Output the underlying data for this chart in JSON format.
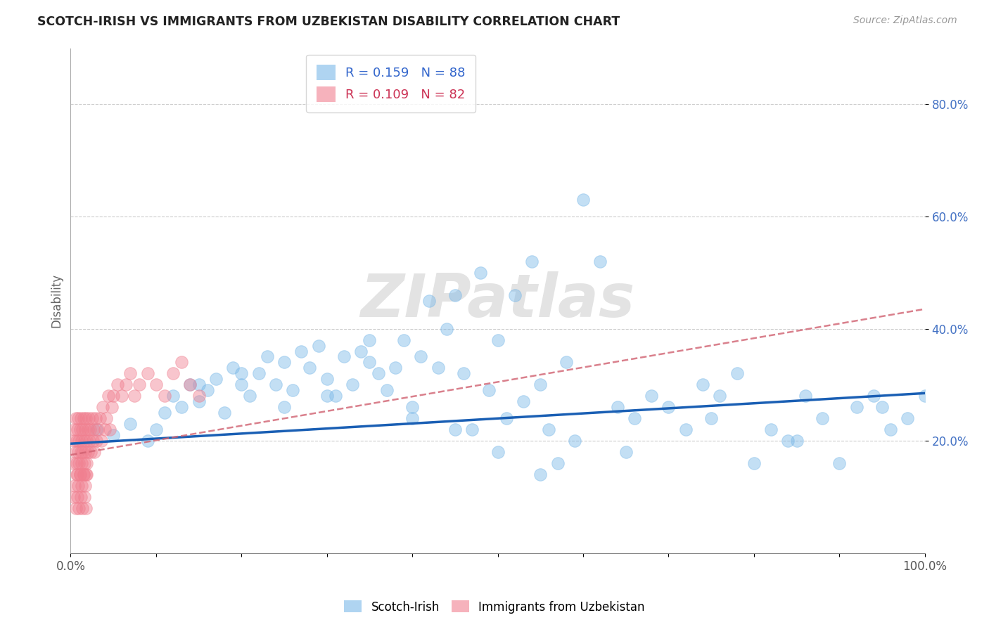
{
  "title": "SCOTCH-IRISH VS IMMIGRANTS FROM UZBEKISTAN DISABILITY CORRELATION CHART",
  "source": "Source: ZipAtlas.com",
  "ylabel": "Disability",
  "r_blue": 0.159,
  "n_blue": 88,
  "r_pink": 0.109,
  "n_pink": 82,
  "blue_color": "#7ab8e8",
  "pink_color": "#f08090",
  "blue_line_color": "#1a5fb4",
  "pink_line_color": "#d06070",
  "watermark": "ZIPatlas",
  "xlim": [
    0.0,
    1.0
  ],
  "ylim": [
    0.0,
    0.9
  ],
  "ytick_vals": [
    0.2,
    0.4,
    0.6,
    0.8
  ],
  "blue_line_x0": 0.0,
  "blue_line_y0": 0.195,
  "blue_line_x1": 1.0,
  "blue_line_y1": 0.285,
  "pink_line_x0": 0.0,
  "pink_line_y0": 0.175,
  "pink_line_x1": 1.0,
  "pink_line_y1": 0.435,
  "blue_x": [
    0.03,
    0.05,
    0.07,
    0.09,
    0.1,
    0.11,
    0.12,
    0.13,
    0.14,
    0.15,
    0.16,
    0.17,
    0.18,
    0.19,
    0.2,
    0.21,
    0.22,
    0.23,
    0.24,
    0.25,
    0.26,
    0.27,
    0.28,
    0.29,
    0.3,
    0.31,
    0.32,
    0.33,
    0.34,
    0.35,
    0.36,
    0.37,
    0.38,
    0.39,
    0.4,
    0.41,
    0.42,
    0.43,
    0.44,
    0.45,
    0.46,
    0.47,
    0.48,
    0.49,
    0.5,
    0.51,
    0.52,
    0.53,
    0.54,
    0.55,
    0.56,
    0.57,
    0.58,
    0.59,
    0.6,
    0.62,
    0.64,
    0.66,
    0.68,
    0.7,
    0.72,
    0.74,
    0.76,
    0.78,
    0.8,
    0.82,
    0.84,
    0.86,
    0.88,
    0.9,
    0.92,
    0.94,
    0.96,
    0.98,
    1.0,
    0.15,
    0.25,
    0.35,
    0.45,
    0.55,
    0.65,
    0.75,
    0.85,
    0.95,
    0.2,
    0.3,
    0.4,
    0.5
  ],
  "blue_y": [
    0.22,
    0.21,
    0.23,
    0.2,
    0.22,
    0.25,
    0.28,
    0.26,
    0.3,
    0.27,
    0.29,
    0.31,
    0.25,
    0.33,
    0.3,
    0.28,
    0.32,
    0.35,
    0.3,
    0.34,
    0.29,
    0.36,
    0.33,
    0.37,
    0.31,
    0.28,
    0.35,
    0.3,
    0.36,
    0.34,
    0.32,
    0.29,
    0.33,
    0.38,
    0.26,
    0.35,
    0.45,
    0.33,
    0.4,
    0.46,
    0.32,
    0.22,
    0.5,
    0.29,
    0.38,
    0.24,
    0.46,
    0.27,
    0.52,
    0.3,
    0.22,
    0.16,
    0.34,
    0.2,
    0.63,
    0.52,
    0.26,
    0.24,
    0.28,
    0.26,
    0.22,
    0.3,
    0.28,
    0.32,
    0.16,
    0.22,
    0.2,
    0.28,
    0.24,
    0.16,
    0.26,
    0.28,
    0.22,
    0.24,
    0.28,
    0.3,
    0.26,
    0.38,
    0.22,
    0.14,
    0.18,
    0.24,
    0.2,
    0.26,
    0.32,
    0.28,
    0.24,
    0.18
  ],
  "pink_x": [
    0.003,
    0.004,
    0.005,
    0.006,
    0.006,
    0.007,
    0.007,
    0.008,
    0.008,
    0.009,
    0.009,
    0.01,
    0.01,
    0.011,
    0.011,
    0.012,
    0.012,
    0.013,
    0.013,
    0.014,
    0.014,
    0.015,
    0.015,
    0.016,
    0.016,
    0.017,
    0.017,
    0.018,
    0.018,
    0.019,
    0.019,
    0.02,
    0.02,
    0.021,
    0.022,
    0.023,
    0.024,
    0.025,
    0.026,
    0.027,
    0.028,
    0.029,
    0.03,
    0.032,
    0.034,
    0.036,
    0.038,
    0.04,
    0.042,
    0.044,
    0.046,
    0.048,
    0.05,
    0.055,
    0.06,
    0.065,
    0.07,
    0.075,
    0.08,
    0.09,
    0.1,
    0.11,
    0.12,
    0.13,
    0.14,
    0.15,
    0.004,
    0.005,
    0.006,
    0.007,
    0.008,
    0.009,
    0.01,
    0.011,
    0.012,
    0.013,
    0.014,
    0.015,
    0.016,
    0.017,
    0.018,
    0.019
  ],
  "pink_y": [
    0.16,
    0.2,
    0.22,
    0.18,
    0.24,
    0.16,
    0.2,
    0.14,
    0.22,
    0.18,
    0.24,
    0.16,
    0.2,
    0.22,
    0.14,
    0.18,
    0.24,
    0.2,
    0.16,
    0.22,
    0.18,
    0.14,
    0.24,
    0.2,
    0.16,
    0.22,
    0.18,
    0.14,
    0.24,
    0.2,
    0.16,
    0.22,
    0.18,
    0.24,
    0.2,
    0.22,
    0.18,
    0.24,
    0.2,
    0.22,
    0.18,
    0.24,
    0.2,
    0.22,
    0.24,
    0.2,
    0.26,
    0.22,
    0.24,
    0.28,
    0.22,
    0.26,
    0.28,
    0.3,
    0.28,
    0.3,
    0.32,
    0.28,
    0.3,
    0.32,
    0.3,
    0.28,
    0.32,
    0.34,
    0.3,
    0.28,
    0.1,
    0.12,
    0.08,
    0.14,
    0.1,
    0.12,
    0.08,
    0.14,
    0.1,
    0.12,
    0.08,
    0.14,
    0.1,
    0.12,
    0.08,
    0.14
  ]
}
